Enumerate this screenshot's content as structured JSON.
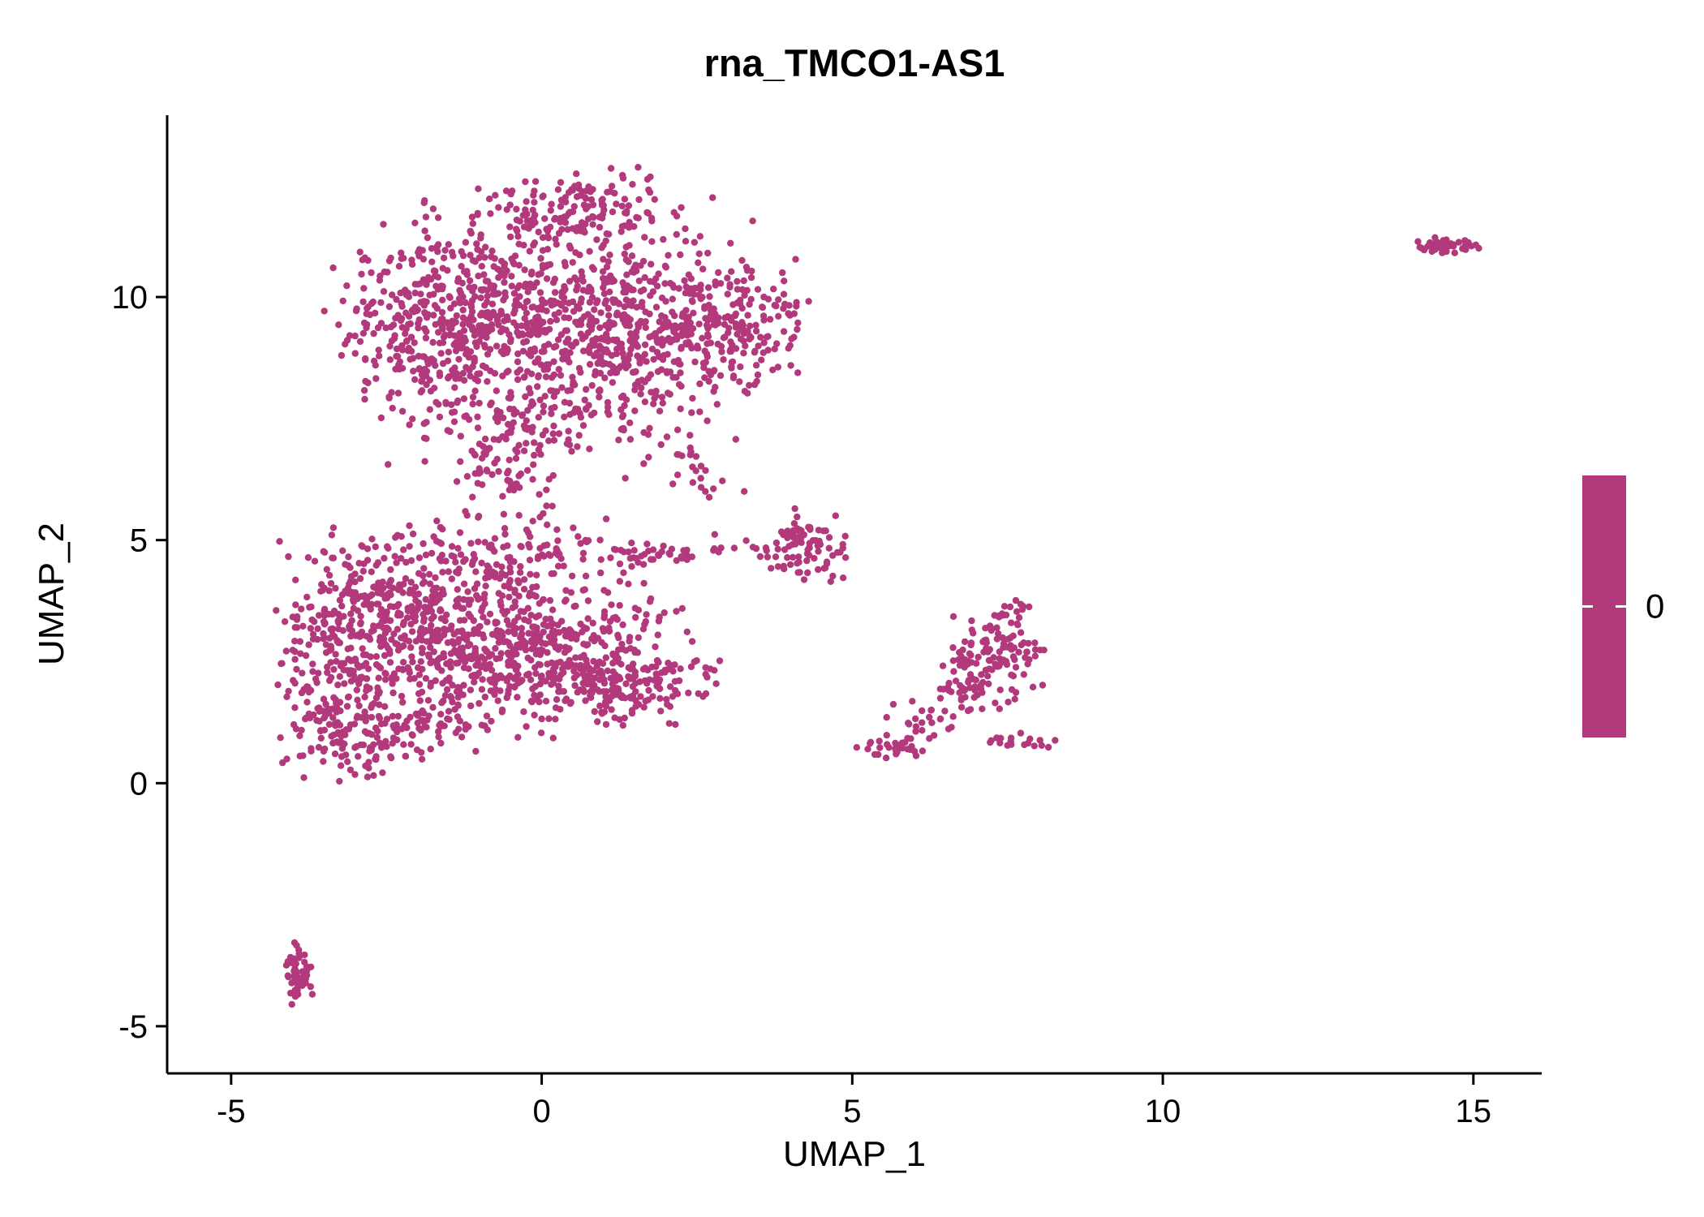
{
  "title": "rna_TMCO1-AS1",
  "legend": {
    "label": "0",
    "bar_color": "#B23A7C",
    "tick_color": "#FFFFFF"
  },
  "style": {
    "background": "#FFFFFF",
    "axis_color": "#000000",
    "tick_label_color": "#000000",
    "point_color": "#B23A7C"
  },
  "chart_data": {
    "type": "scatter",
    "title": "rna_TMCO1-AS1",
    "xlabel": "UMAP_1",
    "ylabel": "UMAP_2",
    "xlim": [
      -6.03,
      16.1
    ],
    "ylim": [
      -5.97,
      13.74
    ],
    "x_ticks": [
      -5,
      0,
      5,
      10,
      15
    ],
    "y_ticks": [
      -5,
      0,
      5,
      10
    ],
    "grid": false,
    "legend_position": "right",
    "point_color": "#B23A7C",
    "point_radius_px": 4.2,
    "uniform_expression_value": 0,
    "seed": 11,
    "n_points_total": 3594,
    "clusters": [
      {
        "name": "upper-blob-core",
        "cx": 0.2,
        "cy": 10.2,
        "sx": 1.5,
        "sy": 0.9,
        "n": 450
      },
      {
        "name": "upper-blob-left",
        "cx": -1.6,
        "cy": 9.4,
        "sx": 0.9,
        "sy": 0.8,
        "n": 300
      },
      {
        "name": "upper-blob-lower-right",
        "cx": 1.1,
        "cy": 9.0,
        "sx": 1.1,
        "sy": 0.7,
        "n": 300
      },
      {
        "name": "upper-blob-right-lobe",
        "cx": 2.9,
        "cy": 9.4,
        "sx": 0.7,
        "sy": 0.7,
        "n": 200
      },
      {
        "name": "upper-blob-top-peak",
        "cx": 0.6,
        "cy": 11.9,
        "sx": 0.8,
        "sy": 0.4,
        "n": 120
      },
      {
        "name": "upper-blob-bottom-fringe",
        "cx": -0.1,
        "cy": 7.7,
        "sx": 1.2,
        "sy": 0.6,
        "n": 180
      },
      {
        "name": "neck",
        "cx": -0.6,
        "cy": 6.4,
        "sx": 0.5,
        "sy": 0.5,
        "n": 70
      },
      {
        "name": "upper-right-scatter",
        "cx": 2.3,
        "cy": 6.6,
        "sx": 0.5,
        "sy": 0.4,
        "n": 25
      },
      {
        "name": "lower-blob-upper-left",
        "cx": -2.3,
        "cy": 3.6,
        "sx": 0.9,
        "sy": 0.8,
        "n": 350
      },
      {
        "name": "lower-blob-core",
        "cx": -1.0,
        "cy": 2.6,
        "sx": 1.1,
        "sy": 0.8,
        "n": 350
      },
      {
        "name": "lower-blob-right",
        "cx": 0.5,
        "cy": 2.7,
        "sx": 0.9,
        "sy": 0.7,
        "n": 260
      },
      {
        "name": "lower-blob-left-edge",
        "cx": -3.3,
        "cy": 2.2,
        "sx": 0.5,
        "sy": 1.0,
        "n": 170
      },
      {
        "name": "lower-blob-bottom-edge",
        "cx": -2.6,
        "cy": 1.0,
        "sx": 0.8,
        "sy": 0.35,
        "n": 130
      },
      {
        "name": "lower-blob-right-tail",
        "cx": 1.5,
        "cy": 2.0,
        "sx": 0.6,
        "sy": 0.45,
        "n": 110
      },
      {
        "name": "lower-blob-top-band",
        "cx": -0.4,
        "cy": 4.7,
        "sx": 1.0,
        "sy": 0.45,
        "n": 120
      },
      {
        "name": "lower-right-outliers",
        "cx": 2.8,
        "cy": 2.5,
        "sx": 0.25,
        "sy": 0.15,
        "n": 6
      },
      {
        "name": "mid-strand",
        "cx": 2.0,
        "cy": 4.75,
        "sx": 0.45,
        "sy": 0.12,
        "n": 35
      },
      {
        "name": "mid-strand-outliers",
        "cx": 3.3,
        "cy": 4.8,
        "sx": 0.3,
        "sy": 0.15,
        "n": 8
      },
      {
        "name": "mid-cluster",
        "cx": 4.25,
        "cy": 4.9,
        "sx": 0.3,
        "sy": 0.38,
        "n": 85
      },
      {
        "name": "right-cluster-core",
        "cx": 7.3,
        "cy": 2.6,
        "sx": 0.4,
        "sy": 0.45,
        "n": 110
      },
      {
        "name": "right-cluster-tail-1",
        "cx": 6.8,
        "cy": 1.9,
        "sx": 0.3,
        "sy": 0.25,
        "n": 30
      },
      {
        "name": "right-cluster-tail-2",
        "cx": 6.2,
        "cy": 1.3,
        "sx": 0.3,
        "sy": 0.2,
        "n": 25
      },
      {
        "name": "right-cluster-tail-3",
        "cx": 5.6,
        "cy": 0.7,
        "sx": 0.25,
        "sy": 0.13,
        "n": 28
      },
      {
        "name": "right-cluster-bottom-strand",
        "cx": 7.8,
        "cy": 0.85,
        "sx": 0.3,
        "sy": 0.1,
        "n": 18
      },
      {
        "name": "right-cluster-top-spur",
        "cx": 7.65,
        "cy": 3.5,
        "sx": 0.12,
        "sy": 0.3,
        "n": 14
      },
      {
        "name": "far-right-cluster",
        "cx": 14.55,
        "cy": 11.05,
        "sx": 0.28,
        "sy": 0.09,
        "n": 45
      },
      {
        "name": "bottom-left-cluster",
        "cx": -3.9,
        "cy": -3.9,
        "sx": 0.1,
        "sy": 0.33,
        "n": 55
      }
    ]
  }
}
